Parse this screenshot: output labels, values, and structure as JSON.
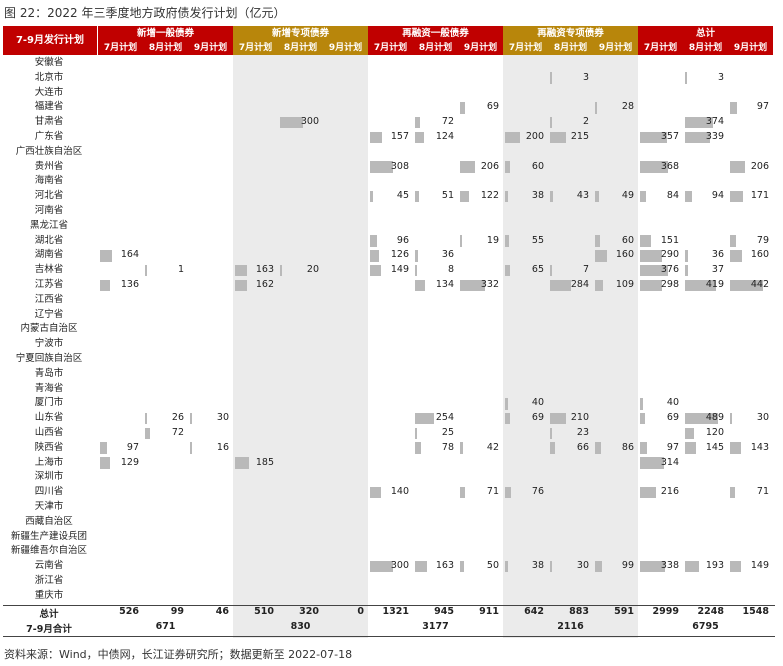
{
  "caption": "图 22：2022 年三季度地方政府债发行计划（亿元）",
  "footer": "资料来源：Wind，中债网，长江证券研究所；数据更新至 2022-07-18",
  "table": {
    "corner_label": "7-9月发行计划",
    "groups": [
      {
        "name": "新增一般债券",
        "color": "#c00000"
      },
      {
        "name": "新增专项债券",
        "color": "#b8860b"
      },
      {
        "name": "再融资一般债券",
        "color": "#c00000"
      },
      {
        "name": "再融资专项债券",
        "color": "#b8860b"
      },
      {
        "name": "总计",
        "color": "#c00000"
      }
    ],
    "month_labels": [
      "7月计划",
      "8月计划",
      "9月计划"
    ],
    "provinces": [
      "安徽省",
      "北京市",
      "大连市",
      "福建省",
      "甘肃省",
      "广东省",
      "广西壮族自治区",
      "贵州省",
      "海南省",
      "河北省",
      "河南省",
      "黑龙江省",
      "湖北省",
      "湖南省",
      "吉林省",
      "江苏省",
      "江西省",
      "辽宁省",
      "内蒙古自治区",
      "宁波市",
      "宁夏回族自治区",
      "青岛市",
      "青海省",
      "厦门市",
      "山东省",
      "山西省",
      "陕西省",
      "上海市",
      "深圳市",
      "四川省",
      "天津市",
      "西藏自治区",
      "新疆生产建设兵团",
      "新疆维吾尔自治区",
      "云南省",
      "浙江省",
      "重庆市"
    ],
    "values": [
      [
        null,
        null,
        null,
        null,
        null,
        null,
        null,
        null,
        null,
        null,
        null,
        null,
        null,
        null,
        null
      ],
      [
        null,
        null,
        null,
        null,
        null,
        null,
        null,
        null,
        null,
        null,
        3,
        null,
        null,
        3,
        null
      ],
      [
        null,
        null,
        null,
        null,
        null,
        null,
        null,
        null,
        null,
        null,
        null,
        null,
        null,
        null,
        null
      ],
      [
        null,
        null,
        null,
        null,
        null,
        null,
        null,
        null,
        69,
        null,
        null,
        28,
        null,
        null,
        97
      ],
      [
        null,
        null,
        null,
        null,
        300,
        null,
        null,
        72,
        null,
        null,
        2,
        null,
        null,
        374,
        null
      ],
      [
        null,
        null,
        null,
        null,
        null,
        null,
        157,
        124,
        null,
        200,
        215,
        null,
        357,
        339,
        null
      ],
      [
        null,
        null,
        null,
        null,
        null,
        null,
        null,
        null,
        null,
        null,
        null,
        null,
        null,
        null,
        null
      ],
      [
        null,
        null,
        null,
        null,
        null,
        null,
        308,
        null,
        206,
        60,
        null,
        null,
        368,
        null,
        206
      ],
      [
        null,
        null,
        null,
        null,
        null,
        null,
        null,
        null,
        null,
        null,
        null,
        null,
        null,
        null,
        null
      ],
      [
        null,
        null,
        null,
        null,
        null,
        null,
        45,
        51,
        122,
        38,
        43,
        49,
        84,
        94,
        171
      ],
      [
        null,
        null,
        null,
        null,
        null,
        null,
        null,
        null,
        null,
        null,
        null,
        null,
        null,
        null,
        null
      ],
      [
        null,
        null,
        null,
        null,
        null,
        null,
        null,
        null,
        null,
        null,
        null,
        null,
        null,
        null,
        null
      ],
      [
        null,
        null,
        null,
        null,
        null,
        null,
        96,
        null,
        19,
        55,
        null,
        60,
        151,
        null,
        79
      ],
      [
        164,
        null,
        null,
        null,
        null,
        null,
        126,
        36,
        null,
        null,
        null,
        160,
        290,
        36,
        160
      ],
      [
        null,
        1,
        null,
        163,
        20,
        null,
        149,
        8,
        null,
        65,
        7,
        null,
        376,
        37,
        null
      ],
      [
        136,
        null,
        null,
        162,
        null,
        null,
        null,
        134,
        332,
        null,
        284,
        109,
        298,
        419,
        442
      ],
      [
        null,
        null,
        null,
        null,
        null,
        null,
        null,
        null,
        null,
        null,
        null,
        null,
        null,
        null,
        null
      ],
      [
        null,
        null,
        null,
        null,
        null,
        null,
        null,
        null,
        null,
        null,
        null,
        null,
        null,
        null,
        null
      ],
      [
        null,
        null,
        null,
        null,
        null,
        null,
        null,
        null,
        null,
        null,
        null,
        null,
        null,
        null,
        null
      ],
      [
        null,
        null,
        null,
        null,
        null,
        null,
        null,
        null,
        null,
        null,
        null,
        null,
        null,
        null,
        null
      ],
      [
        null,
        null,
        null,
        null,
        null,
        null,
        null,
        null,
        null,
        null,
        null,
        null,
        null,
        null,
        null
      ],
      [
        null,
        null,
        null,
        null,
        null,
        null,
        null,
        null,
        null,
        null,
        null,
        null,
        null,
        null,
        null
      ],
      [
        null,
        null,
        null,
        null,
        null,
        null,
        null,
        null,
        null,
        null,
        null,
        null,
        null,
        null,
        null
      ],
      [
        null,
        null,
        null,
        null,
        null,
        null,
        null,
        null,
        null,
        40,
        null,
        null,
        40,
        null,
        null
      ],
      [
        null,
        26,
        30,
        null,
        null,
        null,
        null,
        254,
        null,
        69,
        210,
        null,
        69,
        489,
        30
      ],
      [
        null,
        72,
        null,
        null,
        null,
        null,
        null,
        25,
        null,
        null,
        23,
        null,
        null,
        120,
        null
      ],
      [
        97,
        null,
        16,
        null,
        null,
        null,
        null,
        78,
        42,
        null,
        66,
        86,
        97,
        145,
        143
      ],
      [
        129,
        null,
        null,
        185,
        null,
        null,
        null,
        null,
        null,
        null,
        null,
        null,
        314,
        null,
        null
      ],
      [
        null,
        null,
        null,
        null,
        null,
        null,
        null,
        null,
        null,
        null,
        null,
        null,
        null,
        null,
        null
      ],
      [
        null,
        null,
        null,
        null,
        null,
        null,
        140,
        null,
        71,
        76,
        null,
        null,
        216,
        null,
        71
      ],
      [
        null,
        null,
        null,
        null,
        null,
        null,
        null,
        null,
        null,
        null,
        null,
        null,
        null,
        null,
        null
      ],
      [
        null,
        null,
        null,
        null,
        null,
        null,
        null,
        null,
        null,
        null,
        null,
        null,
        null,
        null,
        null
      ],
      [
        null,
        null,
        null,
        null,
        null,
        null,
        null,
        null,
        null,
        null,
        null,
        null,
        null,
        null,
        null
      ],
      [
        null,
        null,
        null,
        null,
        null,
        null,
        null,
        null,
        null,
        null,
        null,
        null,
        null,
        null,
        null
      ],
      [
        null,
        null,
        null,
        null,
        null,
        null,
        300,
        163,
        50,
        38,
        30,
        99,
        338,
        193,
        149
      ],
      [
        null,
        null,
        null,
        null,
        null,
        null,
        null,
        null,
        null,
        null,
        null,
        null,
        null,
        null,
        null
      ],
      [
        null,
        null,
        null,
        null,
        null,
        null,
        null,
        null,
        null,
        null,
        null,
        null,
        null,
        null,
        null
      ]
    ],
    "total_label": "总计",
    "totals": [
      526,
      99,
      46,
      510,
      320,
      0,
      1321,
      945,
      911,
      642,
      883,
      591,
      2999,
      2248,
      1548
    ],
    "quarter_label": "7-9月合计",
    "quarter_totals": [
      671,
      830,
      3177,
      2116,
      6795
    ]
  }
}
